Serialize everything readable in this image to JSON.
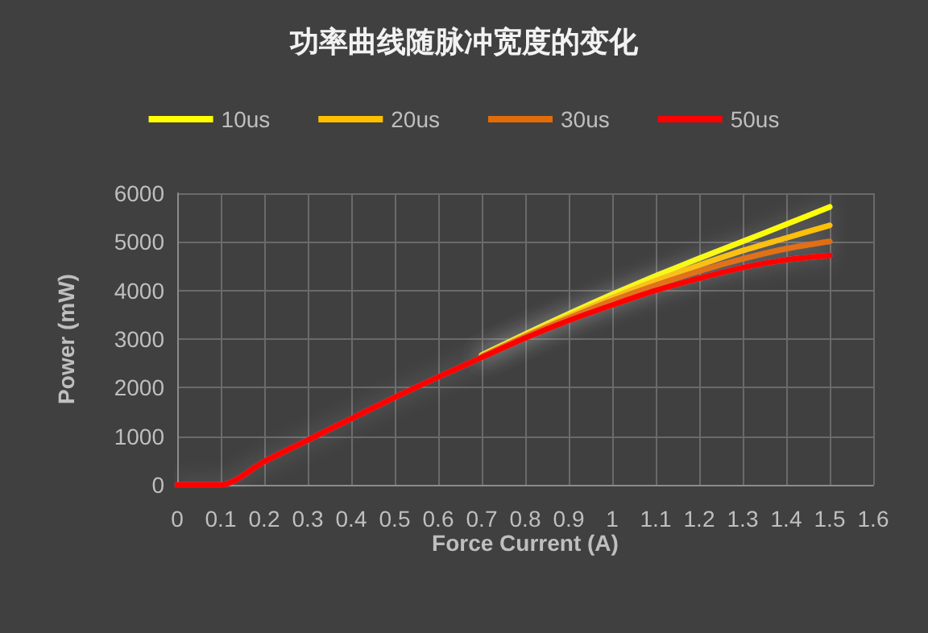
{
  "chart_data": {
    "type": "line",
    "title": "功率曲线随脉冲宽度的变化",
    "xlabel": "Force Current (A)",
    "ylabel": "Power (mW)",
    "x": [
      0,
      0.1,
      0.2,
      0.3,
      0.4,
      0.5,
      0.6,
      0.7,
      0.8,
      0.9,
      1.0,
      1.1,
      1.2,
      1.3,
      1.4,
      1.5
    ],
    "series": [
      {
        "name": "10us",
        "color": "#ffff00",
        "values": [
          null,
          null,
          null,
          null,
          null,
          null,
          null,
          2670,
          3100,
          3520,
          3920,
          4300,
          4660,
          5010,
          5360,
          5720
        ]
      },
      {
        "name": "20us",
        "color": "#ffc000",
        "values": [
          null,
          null,
          null,
          null,
          null,
          null,
          null,
          2650,
          3070,
          3470,
          3850,
          4200,
          4520,
          4820,
          5080,
          5340
        ]
      },
      {
        "name": "30us",
        "color": "#e36c09",
        "values": [
          null,
          null,
          null,
          null,
          null,
          null,
          null,
          2640,
          3050,
          3430,
          3790,
          4110,
          4400,
          4650,
          4860,
          5010
        ]
      },
      {
        "name": "50us",
        "color": "#ff0000",
        "values": [
          0,
          0,
          480,
          920,
          1360,
          1800,
          2220,
          2620,
          3020,
          3380,
          3700,
          4000,
          4250,
          4470,
          4630,
          4720
        ]
      }
    ],
    "xlim": [
      0,
      1.6
    ],
    "xticks": [
      0,
      0.1,
      0.2,
      0.3,
      0.4,
      0.5,
      0.6,
      0.7,
      0.8,
      0.9,
      1,
      1.1,
      1.2,
      1.3,
      1.4,
      1.5,
      1.6
    ],
    "ylim": [
      0,
      6000
    ],
    "yticks": [
      0,
      1000,
      2000,
      3000,
      4000,
      5000,
      6000
    ],
    "grid": true,
    "legend": "top",
    "marker": "none",
    "line_style": "solid"
  }
}
